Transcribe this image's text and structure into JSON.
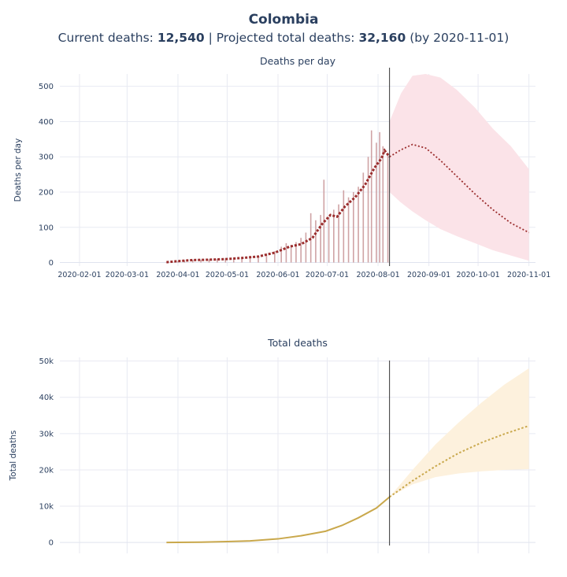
{
  "header": {
    "title": "Colombia",
    "current_label": "Current deaths: ",
    "current_value": "12,540",
    "sep": " | Projected total deaths: ",
    "projected_value": "32,160",
    "by_text": " (by 2020-11-01)"
  },
  "chart_data": [
    {
      "type": "bar",
      "title": "Deaths per day",
      "ylabel": "Deaths per day",
      "xlabel": "",
      "ylim": [
        -10,
        535
      ],
      "yticks": [
        0,
        100,
        200,
        300,
        400,
        500
      ],
      "ytick_labels": [
        "0",
        "100",
        "200",
        "300",
        "400",
        "500"
      ],
      "xticks": [
        "2020-02-01",
        "2020-03-01",
        "2020-04-01",
        "2020-05-01",
        "2020-06-01",
        "2020-07-01",
        "2020-08-01",
        "2020-09-01",
        "2020-10-01",
        "2020-11-01"
      ],
      "xlim": [
        "2020-01-20",
        "2020-11-05"
      ],
      "vline_date": "2020-08-08",
      "grid": true,
      "colors": {
        "bars": "#cfa3a5",
        "fit": "#9b2d2d",
        "band": "#fbe3e8"
      },
      "daily_deaths": {
        "points": [
          [
            "2020-03-25",
            1
          ],
          [
            "2020-03-30",
            2
          ],
          [
            "2020-04-01",
            4
          ],
          [
            "2020-04-05",
            6
          ],
          [
            "2020-04-10",
            8
          ],
          [
            "2020-04-15",
            8
          ],
          [
            "2020-04-20",
            9
          ],
          [
            "2020-04-25",
            10
          ],
          [
            "2020-04-30",
            12
          ],
          [
            "2020-05-05",
            14
          ],
          [
            "2020-05-10",
            13
          ],
          [
            "2020-05-15",
            15
          ],
          [
            "2020-05-20",
            18
          ],
          [
            "2020-05-25",
            25
          ],
          [
            "2020-05-30",
            32
          ],
          [
            "2020-06-03",
            45
          ],
          [
            "2020-06-06",
            55
          ],
          [
            "2020-06-09",
            50
          ],
          [
            "2020-06-12",
            58
          ],
          [
            "2020-06-15",
            70
          ],
          [
            "2020-06-18",
            85
          ],
          [
            "2020-06-21",
            140
          ],
          [
            "2020-06-24",
            120
          ],
          [
            "2020-06-27",
            135
          ],
          [
            "2020-06-29",
            235
          ],
          [
            "2020-07-02",
            130
          ],
          [
            "2020-07-05",
            150
          ],
          [
            "2020-07-08",
            165
          ],
          [
            "2020-07-11",
            205
          ],
          [
            "2020-07-14",
            185
          ],
          [
            "2020-07-17",
            200
          ],
          [
            "2020-07-20",
            215
          ],
          [
            "2020-07-23",
            255
          ],
          [
            "2020-07-26",
            300
          ],
          [
            "2020-07-28",
            375
          ],
          [
            "2020-07-31",
            340
          ],
          [
            "2020-08-02",
            370
          ],
          [
            "2020-08-04",
            330
          ],
          [
            "2020-08-07",
            310
          ]
        ]
      },
      "fitted_deaths": {
        "points": [
          [
            "2020-03-25",
            1
          ],
          [
            "2020-04-01",
            4
          ],
          [
            "2020-04-10",
            7
          ],
          [
            "2020-04-20",
            8
          ],
          [
            "2020-05-01",
            10
          ],
          [
            "2020-05-10",
            13
          ],
          [
            "2020-05-20",
            17
          ],
          [
            "2020-05-30",
            28
          ],
          [
            "2020-06-08",
            45
          ],
          [
            "2020-06-15",
            52
          ],
          [
            "2020-06-22",
            70
          ],
          [
            "2020-06-28",
            110
          ],
          [
            "2020-07-03",
            135
          ],
          [
            "2020-07-07",
            130
          ],
          [
            "2020-07-12",
            160
          ],
          [
            "2020-07-18",
            185
          ],
          [
            "2020-07-24",
            220
          ],
          [
            "2020-07-30",
            270
          ],
          [
            "2020-08-03",
            295
          ],
          [
            "2020-08-05",
            318
          ],
          [
            "2020-08-08",
            300
          ]
        ]
      },
      "projected_deaths": {
        "points": [
          [
            "2020-08-08",
            300
          ],
          [
            "2020-08-15",
            320
          ],
          [
            "2020-08-22",
            335
          ],
          [
            "2020-08-30",
            325
          ],
          [
            "2020-09-08",
            290
          ],
          [
            "2020-09-18",
            245
          ],
          [
            "2020-09-29",
            195
          ],
          [
            "2020-10-10",
            150
          ],
          [
            "2020-10-21",
            112
          ],
          [
            "2020-11-01",
            85
          ]
        ]
      },
      "projection_band": {
        "upper": [
          [
            "2020-08-08",
            400
          ],
          [
            "2020-08-15",
            480
          ],
          [
            "2020-08-22",
            530
          ],
          [
            "2020-08-30",
            535
          ],
          [
            "2020-09-08",
            525
          ],
          [
            "2020-09-18",
            490
          ],
          [
            "2020-09-29",
            440
          ],
          [
            "2020-10-10",
            380
          ],
          [
            "2020-10-21",
            330
          ],
          [
            "2020-11-01",
            265
          ]
        ],
        "lower": [
          [
            "2020-08-08",
            200
          ],
          [
            "2020-08-15",
            170
          ],
          [
            "2020-08-22",
            145
          ],
          [
            "2020-08-30",
            120
          ],
          [
            "2020-09-08",
            95
          ],
          [
            "2020-09-18",
            75
          ],
          [
            "2020-09-29",
            55
          ],
          [
            "2020-10-10",
            35
          ],
          [
            "2020-10-21",
            20
          ],
          [
            "2020-11-01",
            5
          ]
        ]
      }
    },
    {
      "type": "line",
      "title": "Total deaths",
      "ylabel": "Total deaths",
      "xlabel": "",
      "ylim": [
        -3000,
        51000
      ],
      "yticks": [
        0,
        10000,
        20000,
        30000,
        40000,
        50000
      ],
      "ytick_labels": [
        "0",
        "10k",
        "20k",
        "30k",
        "40k",
        "50k"
      ],
      "xlim": [
        "2020-01-20",
        "2020-11-05"
      ],
      "vline_date": "2020-08-08",
      "grid": true,
      "colors": {
        "line": "#c9a84c",
        "band": "#fdf1dd"
      },
      "total_deaths": {
        "points": [
          [
            "2020-03-25",
            2
          ],
          [
            "2020-04-15",
            80
          ],
          [
            "2020-05-01",
            240
          ],
          [
            "2020-05-15",
            450
          ],
          [
            "2020-06-01",
            1000
          ],
          [
            "2020-06-15",
            1850
          ],
          [
            "2020-06-30",
            3100
          ],
          [
            "2020-07-10",
            4700
          ],
          [
            "2020-07-20",
            6800
          ],
          [
            "2020-07-31",
            9500
          ],
          [
            "2020-08-08",
            12540
          ]
        ]
      },
      "projected_total": {
        "points": [
          [
            "2020-08-08",
            12540
          ],
          [
            "2020-08-22",
            17000
          ],
          [
            "2020-09-05",
            21000
          ],
          [
            "2020-09-19",
            24600
          ],
          [
            "2020-10-03",
            27500
          ],
          [
            "2020-10-17",
            29900
          ],
          [
            "2020-11-01",
            32160
          ]
        ]
      },
      "projection_band": {
        "upper": [
          [
            "2020-08-08",
            12540
          ],
          [
            "2020-08-22",
            20000
          ],
          [
            "2020-09-05",
            27000
          ],
          [
            "2020-09-19",
            33000
          ],
          [
            "2020-10-03",
            38500
          ],
          [
            "2020-10-17",
            43500
          ],
          [
            "2020-11-01",
            48000
          ]
        ],
        "lower": [
          [
            "2020-08-08",
            12540
          ],
          [
            "2020-08-22",
            16000
          ],
          [
            "2020-09-05",
            18000
          ],
          [
            "2020-09-19",
            19000
          ],
          [
            "2020-10-03",
            19600
          ],
          [
            "2020-10-17",
            20000
          ],
          [
            "2020-11-01",
            20200
          ]
        ]
      }
    }
  ]
}
